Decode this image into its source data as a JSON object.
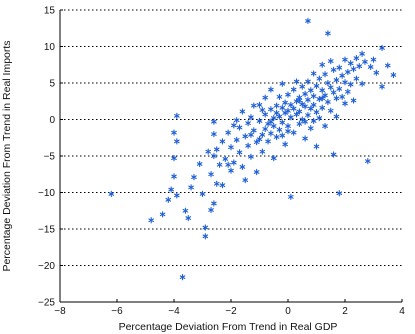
{
  "chart_data": {
    "type": "scatter",
    "title": "",
    "xlabel": "Percentage Deviation From Trend in Real GDP",
    "ylabel": "Percentage Deviation From Trend in Real Imports",
    "xlim": [
      -8,
      4
    ],
    "ylim": [
      -25,
      15
    ],
    "xticks": [
      -8,
      -6,
      -4,
      -2,
      0,
      2,
      4
    ],
    "yticks": [
      -25,
      -20,
      -15,
      -10,
      -5,
      0,
      5,
      10,
      15
    ],
    "grid": "horizontal dotted",
    "legend": "none",
    "marker": "asterisk",
    "colors": {
      "points": "#1f5fd6",
      "grid": "#000000",
      "axis": "#000000"
    },
    "points": [
      [
        -6.2,
        -10.2
      ],
      [
        -4.8,
        -13.8
      ],
      [
        -4.4,
        -13.0
      ],
      [
        -4.2,
        -11.0
      ],
      [
        -4.1,
        -9.6
      ],
      [
        -4.0,
        -7.8
      ],
      [
        -3.9,
        -10.4
      ],
      [
        -4.0,
        -5.3
      ],
      [
        -3.9,
        -3.0
      ],
      [
        -4.0,
        -1.8
      ],
      [
        -3.9,
        0.5
      ],
      [
        -3.7,
        -21.6
      ],
      [
        -3.6,
        -12.5
      ],
      [
        -3.4,
        -9.3
      ],
      [
        -3.3,
        -7.9
      ],
      [
        -3.1,
        -6.1
      ],
      [
        -3.0,
        -10.2
      ],
      [
        -2.9,
        -16.0
      ],
      [
        -2.9,
        -14.8
      ],
      [
        -2.7,
        -12.4
      ],
      [
        -2.6,
        -11.5
      ],
      [
        -2.7,
        -7.5
      ],
      [
        -2.6,
        -5.0
      ],
      [
        -2.5,
        -8.8
      ],
      [
        -2.5,
        -4.1
      ],
      [
        -2.6,
        -2.0
      ],
      [
        -2.6,
        -0.3
      ],
      [
        -2.4,
        -6.2
      ],
      [
        -2.3,
        -9.0
      ],
      [
        -2.3,
        -3.0
      ],
      [
        -2.2,
        -5.4
      ],
      [
        -2.1,
        -1.8
      ],
      [
        -2.0,
        -7.0
      ],
      [
        -2.0,
        -3.8
      ],
      [
        -1.9,
        -0.8
      ],
      [
        -1.9,
        -5.9
      ],
      [
        -1.8,
        -2.8
      ],
      [
        -1.7,
        -1.1
      ],
      [
        -1.7,
        -4.5
      ],
      [
        -1.6,
        -6.5
      ],
      [
        -1.6,
        1.1
      ],
      [
        -1.5,
        -2.3
      ],
      [
        -1.5,
        -8.3
      ],
      [
        -1.4,
        -0.5
      ],
      [
        -1.4,
        -3.6
      ],
      [
        -1.3,
        0.3
      ],
      [
        -1.3,
        -5.1
      ],
      [
        -1.2,
        -1.5
      ],
      [
        -1.2,
        1.9
      ],
      [
        -1.1,
        -3.1
      ],
      [
        -1.1,
        -7.2
      ],
      [
        -1.0,
        -0.2
      ],
      [
        -1.0,
        2.0
      ],
      [
        -0.9,
        -2.1
      ],
      [
        -0.9,
        -4.4
      ],
      [
        -0.8,
        0.7
      ],
      [
        -0.8,
        -1.3
      ],
      [
        -0.8,
        3.0
      ],
      [
        -0.7,
        -0.6
      ],
      [
        -0.7,
        -3.0
      ],
      [
        -0.6,
        1.4
      ],
      [
        -0.6,
        -1.9
      ],
      [
        -0.6,
        4.1
      ],
      [
        -0.5,
        0.2
      ],
      [
        -0.5,
        -0.9
      ],
      [
        -0.5,
        -5.3
      ],
      [
        -0.4,
        1.9
      ],
      [
        -0.4,
        0.9
      ],
      [
        -0.4,
        -2.4
      ],
      [
        -0.3,
        3.1
      ],
      [
        -0.3,
        0.4
      ],
      [
        -0.3,
        -1.4
      ],
      [
        -0.2,
        1.6
      ],
      [
        -0.2,
        -0.4
      ],
      [
        -0.2,
        4.9
      ],
      [
        -0.1,
        2.3
      ],
      [
        -0.1,
        0.9
      ],
      [
        -0.1,
        -3.4
      ],
      [
        0.0,
        1.2
      ],
      [
        0.0,
        -0.9
      ],
      [
        0.0,
        3.4
      ],
      [
        0.1,
        2.0
      ],
      [
        0.1,
        0.3
      ],
      [
        0.1,
        -10.6
      ],
      [
        0.2,
        4.1
      ],
      [
        0.2,
        1.5
      ],
      [
        0.2,
        -1.8
      ],
      [
        0.3,
        2.5
      ],
      [
        0.3,
        0.7
      ],
      [
        0.3,
        5.2
      ],
      [
        0.4,
        3.0
      ],
      [
        0.4,
        1.1
      ],
      [
        0.4,
        -0.6
      ],
      [
        0.5,
        4.5
      ],
      [
        0.5,
        2.1
      ],
      [
        0.5,
        0.0
      ],
      [
        0.6,
        3.5
      ],
      [
        0.6,
        1.8
      ],
      [
        0.6,
        -2.6
      ],
      [
        0.7,
        13.5
      ],
      [
        0.7,
        5.2
      ],
      [
        0.7,
        2.7
      ],
      [
        0.7,
        0.6
      ],
      [
        0.8,
        4.0
      ],
      [
        0.8,
        1.5
      ],
      [
        0.8,
        -1.2
      ],
      [
        0.9,
        6.3
      ],
      [
        0.9,
        3.2
      ],
      [
        0.9,
        2.0
      ],
      [
        1.0,
        4.6
      ],
      [
        1.0,
        1.0
      ],
      [
        1.0,
        -3.7
      ],
      [
        1.1,
        5.6
      ],
      [
        1.1,
        2.8
      ],
      [
        1.1,
        0.2
      ],
      [
        1.2,
        7.5
      ],
      [
        1.2,
        4.0
      ],
      [
        1.2,
        1.6
      ],
      [
        1.3,
        6.2
      ],
      [
        1.3,
        3.3
      ],
      [
        1.3,
        -0.9
      ],
      [
        1.4,
        11.8
      ],
      [
        1.4,
        5.0
      ],
      [
        1.4,
        2.4
      ],
      [
        1.5,
        8.0
      ],
      [
        1.5,
        4.4
      ],
      [
        1.5,
        1.2
      ],
      [
        1.6,
        6.8
      ],
      [
        1.6,
        3.7
      ],
      [
        1.6,
        -4.8
      ],
      [
        1.7,
        5.4
      ],
      [
        1.7,
        2.9
      ],
      [
        1.8,
        7.1
      ],
      [
        1.8,
        4.2
      ],
      [
        1.8,
        -10.1
      ],
      [
        1.9,
        6.0
      ],
      [
        1.9,
        3.1
      ],
      [
        2.0,
        8.2
      ],
      [
        2.0,
        5.1
      ],
      [
        2.1,
        6.5
      ],
      [
        2.1,
        3.8
      ],
      [
        2.2,
        7.7
      ],
      [
        2.2,
        4.8
      ],
      [
        2.3,
        6.9
      ],
      [
        2.3,
        2.6
      ],
      [
        2.4,
        8.4
      ],
      [
        2.4,
        5.6
      ],
      [
        2.5,
        7.3
      ],
      [
        2.6,
        9.0
      ],
      [
        2.6,
        4.9
      ],
      [
        2.7,
        7.9
      ],
      [
        2.8,
        -5.7
      ],
      [
        2.9,
        7.2
      ],
      [
        3.0,
        8.2
      ],
      [
        3.1,
        6.4
      ],
      [
        3.3,
        9.8
      ],
      [
        3.3,
        4.5
      ],
      [
        3.5,
        7.4
      ],
      [
        3.7,
        6.1
      ],
      [
        -1.0,
        -2.7
      ],
      [
        -0.9,
        1.3
      ],
      [
        -0.2,
        -2.2
      ],
      [
        0.6,
        -0.3
      ],
      [
        0.9,
        -0.2
      ],
      [
        1.7,
        0.4
      ],
      [
        -1.8,
        -0.1
      ],
      [
        -2.8,
        -4.4
      ],
      [
        -3.5,
        -13.5
      ],
      [
        -2.1,
        -6.2
      ],
      [
        1.2,
        2.9
      ],
      [
        0.4,
        2.6
      ],
      [
        -0.6,
        -0.3
      ],
      [
        2.0,
        2.2
      ],
      [
        -1.3,
        -2.1
      ],
      [
        0.0,
        -1.6
      ]
    ]
  }
}
